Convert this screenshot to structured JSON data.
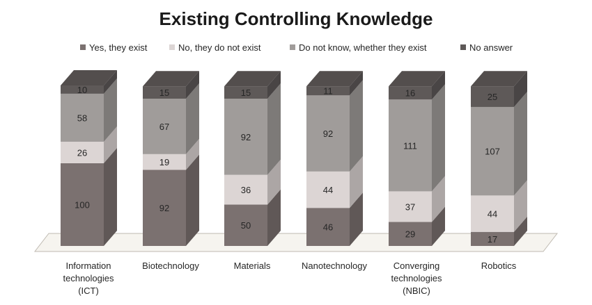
{
  "chart_data": {
    "type": "bar",
    "stacked": true,
    "style": "3d",
    "title": "Existing Controlling Knowledge",
    "categories": [
      "Information technologies (ICT)",
      "Biotechnology",
      "Materials",
      "Nanotechnology",
      "Converging technologies (NBIC)",
      "Robotics"
    ],
    "category_label_lines": [
      [
        "Information",
        "technologies",
        "(ICT)"
      ],
      [
        "Biotechnology"
      ],
      [
        "Materials"
      ],
      [
        "Nanotechnology"
      ],
      [
        "Converging",
        "technologies",
        "(NBIC)"
      ],
      [
        "Robotics"
      ]
    ],
    "series": [
      {
        "name": "Yes, they exist",
        "values": [
          100,
          92,
          50,
          46,
          29,
          17
        ],
        "color": "#7b7170"
      },
      {
        "name": "No, they do not exist",
        "values": [
          26,
          19,
          36,
          44,
          37,
          44
        ],
        "color": "#dcd5d4"
      },
      {
        "name": "Do not know, whether they exist",
        "values": [
          58,
          67,
          92,
          92,
          111,
          107
        ],
        "color": "#a09c9a"
      },
      {
        "name": "No answer",
        "values": [
          10,
          15,
          15,
          11,
          16,
          25
        ],
        "color": "#5e5958"
      }
    ],
    "legend_position": "top",
    "grid": false,
    "xlabel": "",
    "ylabel": ""
  }
}
